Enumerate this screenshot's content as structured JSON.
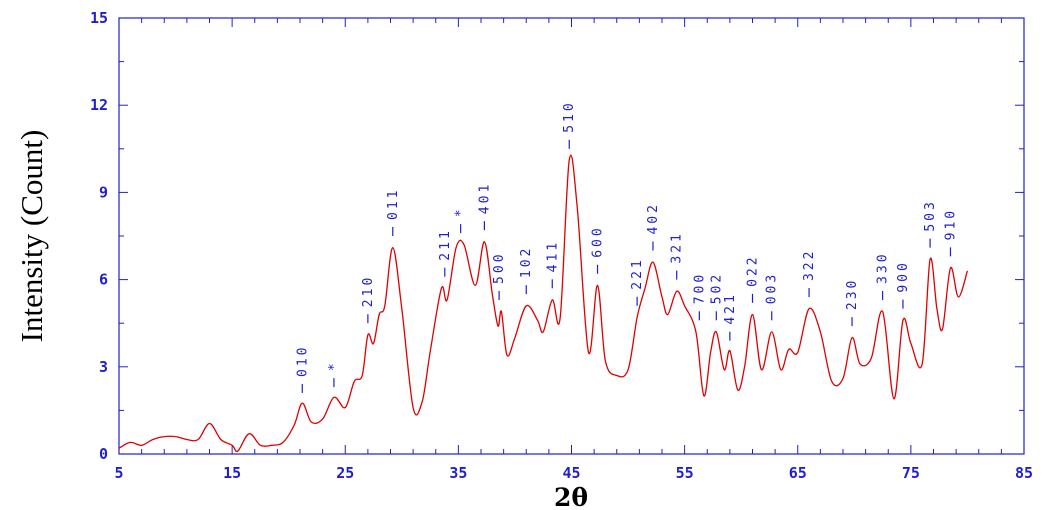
{
  "chart_data": {
    "type": "line",
    "xlabel": "2θ",
    "ylabel": "Intensity (Count)",
    "xlim": [
      5,
      85
    ],
    "ylim": [
      0,
      15
    ],
    "xticks": [
      5,
      15,
      25,
      35,
      45,
      55,
      65,
      75,
      85
    ],
    "yticks": [
      0,
      3,
      6,
      9,
      12,
      15
    ],
    "x_minor_step": 2,
    "y_minor_step": 1.5,
    "grid": false,
    "colors": {
      "axis": "#1f1fd0",
      "series": "#e00000",
      "annotation": "#1f1fd0"
    },
    "series": [
      {
        "points": [
          [
            5.0,
            0.2
          ],
          [
            6.0,
            0.4
          ],
          [
            7.0,
            0.3
          ],
          [
            8.0,
            0.5
          ],
          [
            9.0,
            0.6
          ],
          [
            10.0,
            0.6
          ],
          [
            11.0,
            0.5
          ],
          [
            12.0,
            0.5
          ],
          [
            13.0,
            1.05
          ],
          [
            14.0,
            0.5
          ],
          [
            15.0,
            0.3
          ],
          [
            15.5,
            0.1
          ],
          [
            16.5,
            0.7
          ],
          [
            17.5,
            0.3
          ],
          [
            18.5,
            0.3
          ],
          [
            19.5,
            0.4
          ],
          [
            20.5,
            1.0
          ],
          [
            21.2,
            1.75
          ],
          [
            22.0,
            1.1
          ],
          [
            23.0,
            1.2
          ],
          [
            24.0,
            1.95
          ],
          [
            25.0,
            1.6
          ],
          [
            25.8,
            2.5
          ],
          [
            26.5,
            2.7
          ],
          [
            27.0,
            4.1
          ],
          [
            27.5,
            3.8
          ],
          [
            28.0,
            4.8
          ],
          [
            28.5,
            5.1
          ],
          [
            29.2,
            7.1
          ],
          [
            30.0,
            5.0
          ],
          [
            31.0,
            1.6
          ],
          [
            31.8,
            1.8
          ],
          [
            32.5,
            3.5
          ],
          [
            33.5,
            5.7
          ],
          [
            34.0,
            5.3
          ],
          [
            34.8,
            7.1
          ],
          [
            35.5,
            7.2
          ],
          [
            36.5,
            5.8
          ],
          [
            37.3,
            7.3
          ],
          [
            38.0,
            5.5
          ],
          [
            38.5,
            4.4
          ],
          [
            38.8,
            4.9
          ],
          [
            39.3,
            3.4
          ],
          [
            40.0,
            4.0
          ],
          [
            41.0,
            5.1
          ],
          [
            42.0,
            4.6
          ],
          [
            42.5,
            4.2
          ],
          [
            43.3,
            5.3
          ],
          [
            44.0,
            4.7
          ],
          [
            44.8,
            10.1
          ],
          [
            45.5,
            8.5
          ],
          [
            46.5,
            3.5
          ],
          [
            47.3,
            5.8
          ],
          [
            48.0,
            3.2
          ],
          [
            49.0,
            2.7
          ],
          [
            50.0,
            2.9
          ],
          [
            50.8,
            4.7
          ],
          [
            51.5,
            5.7
          ],
          [
            52.2,
            6.6
          ],
          [
            53.0,
            5.4
          ],
          [
            53.5,
            4.8
          ],
          [
            54.3,
            5.6
          ],
          [
            55.0,
            5.1
          ],
          [
            56.0,
            4.2
          ],
          [
            56.7,
            2.0
          ],
          [
            57.3,
            3.5
          ],
          [
            57.8,
            4.2
          ],
          [
            58.5,
            2.9
          ],
          [
            59.0,
            3.55
          ],
          [
            59.7,
            2.2
          ],
          [
            60.3,
            3.0
          ],
          [
            61.0,
            4.8
          ],
          [
            61.8,
            2.9
          ],
          [
            62.7,
            4.2
          ],
          [
            63.5,
            2.9
          ],
          [
            64.2,
            3.6
          ],
          [
            65.0,
            3.5
          ],
          [
            66.0,
            5.0
          ],
          [
            67.0,
            4.2
          ],
          [
            68.0,
            2.5
          ],
          [
            69.0,
            2.6
          ],
          [
            69.8,
            4.0
          ],
          [
            70.5,
            3.1
          ],
          [
            71.5,
            3.3
          ],
          [
            72.5,
            4.9
          ],
          [
            73.5,
            1.9
          ],
          [
            74.3,
            4.6
          ],
          [
            75.0,
            3.8
          ],
          [
            76.0,
            3.1
          ],
          [
            76.7,
            6.7
          ],
          [
            77.3,
            5.0
          ],
          [
            77.8,
            4.3
          ],
          [
            78.5,
            6.4
          ],
          [
            79.2,
            5.4
          ],
          [
            80.0,
            6.3
          ]
        ]
      }
    ],
    "annotations": [
      {
        "x": 21.2,
        "y": 2.1,
        "label": "010"
      },
      {
        "x": 24.0,
        "y": 2.3,
        "label": "*"
      },
      {
        "x": 27.0,
        "y": 4.5,
        "label": "210"
      },
      {
        "x": 29.2,
        "y": 7.5,
        "label": "011"
      },
      {
        "x": 33.8,
        "y": 6.1,
        "label": "211"
      },
      {
        "x": 35.2,
        "y": 7.6,
        "label": "*"
      },
      {
        "x": 37.3,
        "y": 7.7,
        "label": "401"
      },
      {
        "x": 38.6,
        "y": 5.3,
        "label": "500"
      },
      {
        "x": 41.0,
        "y": 5.5,
        "label": "102"
      },
      {
        "x": 43.3,
        "y": 5.7,
        "label": "411"
      },
      {
        "x": 44.8,
        "y": 10.5,
        "label": "510"
      },
      {
        "x": 47.3,
        "y": 6.2,
        "label": "600"
      },
      {
        "x": 50.8,
        "y": 5.1,
        "label": "221"
      },
      {
        "x": 52.2,
        "y": 7.0,
        "label": "402"
      },
      {
        "x": 54.3,
        "y": 6.0,
        "label": "321"
      },
      {
        "x": 56.3,
        "y": 4.6,
        "label": "700"
      },
      {
        "x": 57.8,
        "y": 4.6,
        "label": "502"
      },
      {
        "x": 59.0,
        "y": 3.9,
        "label": "421"
      },
      {
        "x": 61.0,
        "y": 5.2,
        "label": "022"
      },
      {
        "x": 62.7,
        "y": 4.6,
        "label": "003"
      },
      {
        "x": 66.0,
        "y": 5.4,
        "label": "322"
      },
      {
        "x": 69.8,
        "y": 4.4,
        "label": "230"
      },
      {
        "x": 72.5,
        "y": 5.3,
        "label": "330"
      },
      {
        "x": 74.3,
        "y": 5.0,
        "label": "900"
      },
      {
        "x": 76.7,
        "y": 7.1,
        "label": "503"
      },
      {
        "x": 78.5,
        "y": 6.8,
        "label": "910"
      }
    ]
  }
}
